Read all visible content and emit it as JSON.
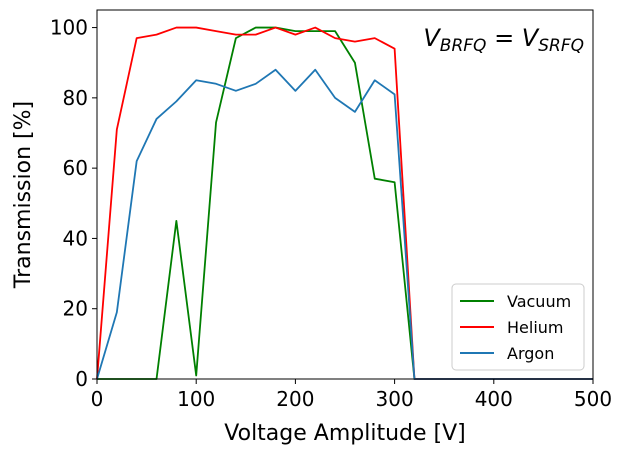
{
  "chart_data": {
    "type": "line",
    "title": "",
    "xlabel": "Voltage Amplitude [V]",
    "ylabel": "Transmission [%]",
    "xlim": [
      0,
      500
    ],
    "ylim": [
      0,
      105
    ],
    "xticks": [
      0,
      100,
      200,
      300,
      400,
      500
    ],
    "yticks": [
      0,
      20,
      40,
      60,
      80,
      100
    ],
    "grid": false,
    "legend_position": "lower-right",
    "annotation": {
      "main": "V",
      "sub1": "BRFQ",
      "eq": " = V",
      "sub2": "SRFQ",
      "position": "top-right"
    },
    "x": [
      0,
      20,
      40,
      60,
      80,
      100,
      120,
      140,
      160,
      180,
      200,
      220,
      240,
      260,
      280,
      300,
      320,
      340,
      360,
      380,
      400,
      420,
      440,
      460,
      480,
      500
    ],
    "series": [
      {
        "name": "Vacuum",
        "color": "#008000",
        "values": [
          0,
          0,
          0,
          0,
          45,
          1,
          73,
          97,
          100,
          100,
          99,
          99,
          99,
          90,
          57,
          56,
          0,
          0,
          0,
          0,
          0,
          0,
          0,
          0,
          0,
          0
        ]
      },
      {
        "name": "Helium",
        "color": "#ff0000",
        "values": [
          0,
          71,
          97,
          98,
          100,
          100,
          99,
          98,
          98,
          100,
          98,
          100,
          97,
          96,
          97,
          94,
          0,
          0,
          0,
          0,
          0,
          0,
          0,
          0,
          0,
          0
        ]
      },
      {
        "name": "Argon",
        "color": "#1f77b4",
        "values": [
          0,
          19,
          62,
          74,
          79,
          85,
          84,
          82,
          84,
          88,
          82,
          88,
          80,
          76,
          85,
          81,
          0,
          0,
          0,
          0,
          0,
          0,
          0,
          0,
          0,
          0
        ]
      }
    ]
  }
}
